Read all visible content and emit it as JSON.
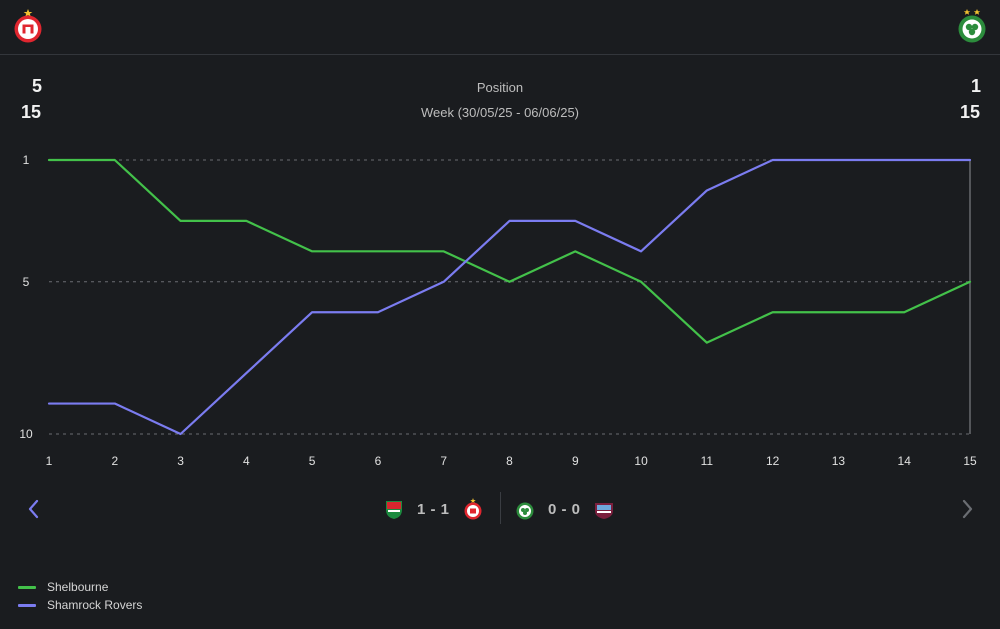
{
  "header": {
    "left_team_crest": "shelbourne-crest-icon",
    "right_team_crest": "shamrock-rovers-crest-icon"
  },
  "summary": {
    "left_position": "5",
    "left_week": "15",
    "right_position": "1",
    "right_week": "15",
    "title": "Position",
    "subtitle": "Week (30/05/25 - 06/06/25)"
  },
  "colors": {
    "shelbourne": "#43c14a",
    "shamrock_rovers": "#7b7cf0",
    "background": "#1a1c1f",
    "gridline": "#6a6d72",
    "nav_arrow_active": "#7b7cf0",
    "nav_arrow_inactive": "#6a6d72"
  },
  "chart_data": {
    "type": "line",
    "x": [
      1,
      2,
      3,
      4,
      5,
      6,
      7,
      8,
      9,
      10,
      11,
      12,
      13,
      14,
      15
    ],
    "x_ticks": [
      "1",
      "2",
      "3",
      "4",
      "5",
      "6",
      "7",
      "8",
      "9",
      "10",
      "11",
      "12",
      "13",
      "14",
      "15"
    ],
    "y_ticks": [
      "1",
      "5",
      "10"
    ],
    "y_tick_values": [
      1,
      5,
      10
    ],
    "ylim": [
      1,
      10
    ],
    "y_inverted": true,
    "grid": "dashed horizontal at 1, 5, 10",
    "highlight_x": 15,
    "series": [
      {
        "name": "Shelbourne",
        "values": [
          1,
          1,
          3,
          3,
          4,
          4,
          4,
          5,
          4,
          5,
          7,
          6,
          6,
          6,
          5
        ]
      },
      {
        "name": "Shamrock Rovers",
        "values": [
          9,
          9,
          10,
          8,
          6,
          6,
          5,
          3,
          3,
          4,
          2,
          1,
          1,
          1,
          1
        ]
      }
    ]
  },
  "matches": [
    {
      "home_crest": "cork-city-crest-icon",
      "score": "1 - 1",
      "away_crest": "shelbourne-crest-icon"
    },
    {
      "home_crest": "shamrock-rovers-crest-icon",
      "score": "0 - 0",
      "away_crest": "galway-united-crest-icon"
    }
  ],
  "legend": [
    {
      "label": "Shelbourne"
    },
    {
      "label": "Shamrock Rovers"
    }
  ]
}
